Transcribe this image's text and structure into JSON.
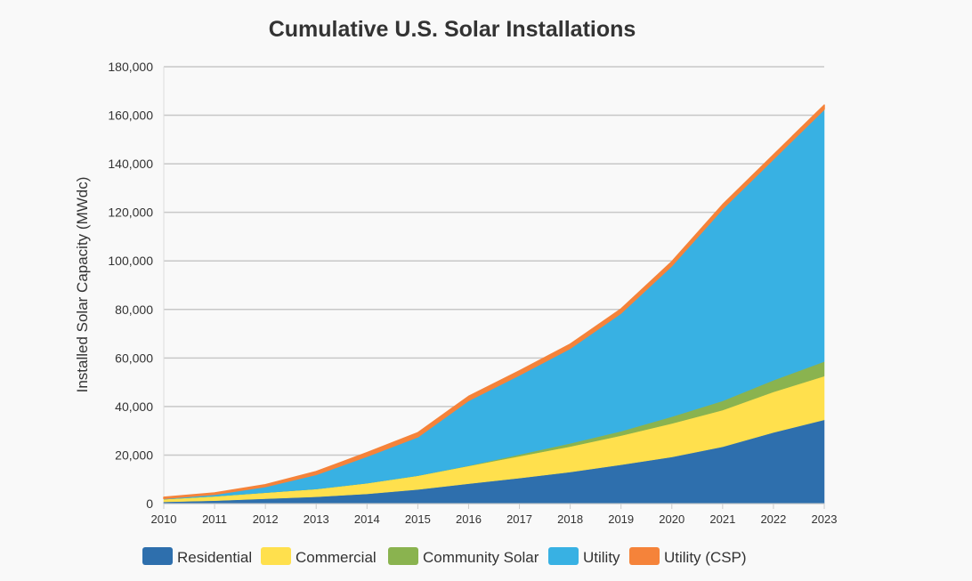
{
  "chart_data": {
    "type": "area",
    "stacked": true,
    "title": "Cumulative U.S. Solar Installations",
    "xlabel": "",
    "ylabel": "Installed Solar Capacity (MWdc)",
    "ylim": [
      0,
      180000
    ],
    "yticks": [
      "0",
      "20,000",
      "40,000",
      "60,000",
      "80,000",
      "100,000",
      "120,000",
      "140,000",
      "160,000",
      "180,000"
    ],
    "grid": true,
    "legend": "bottom",
    "categories": [
      "2010",
      "2011",
      "2012",
      "2013",
      "2014",
      "2015",
      "2016",
      "2017",
      "2018",
      "2019",
      "2020",
      "2021",
      "2022",
      "2023"
    ],
    "series": [
      {
        "name": "Residential",
        "color": "#2e6fad",
        "values": [
          700,
          1200,
          2000,
          2800,
          4000,
          5800,
          8200,
          10500,
          13000,
          16000,
          19200,
          23400,
          29300,
          34500
        ]
      },
      {
        "name": "Commercial",
        "color": "#ffe04d",
        "values": [
          1100,
          1800,
          2500,
          3200,
          4400,
          5700,
          7300,
          9000,
          10500,
          12000,
          13800,
          15100,
          16700,
          18000
        ]
      },
      {
        "name": "Community Solar",
        "color": "#8ab34f",
        "values": [
          0,
          0,
          0,
          0,
          0,
          0,
          100,
          700,
          1300,
          1800,
          2800,
          3800,
          4800,
          6000
        ]
      },
      {
        "name": "Utility",
        "color": "#38b1e3",
        "values": [
          300,
          800,
          2500,
          6000,
          11100,
          16000,
          26900,
          32800,
          39200,
          48700,
          62200,
          79200,
          91200,
          104000
        ]
      },
      {
        "name": "Utility (CSP)",
        "color": "#f5833a",
        "values": [
          500,
          600,
          800,
          1200,
          1500,
          1700,
          1700,
          1700,
          1700,
          1700,
          1700,
          1700,
          1700,
          1700
        ]
      }
    ]
  }
}
